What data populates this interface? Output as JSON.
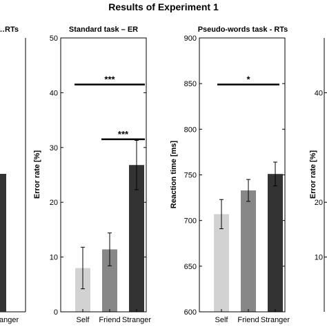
{
  "figure": {
    "title": "Results of Experiment 1"
  },
  "chart_data": [
    {
      "type": "bar",
      "title": "…RTs",
      "visible": "right edge cropped",
      "categories": [
        "…stranger"
      ],
      "values": [
        null
      ],
      "tick_label_text": "anger",
      "partial_bar_visible_top_in_panel2_units": 25.3
    },
    {
      "type": "bar",
      "title": "Standard task – ER",
      "xlabel": "",
      "ylabel": "Error rate [%]",
      "ylim": [
        0,
        50
      ],
      "yticks": [
        0,
        10,
        20,
        30,
        40,
        50
      ],
      "categories": [
        "Self",
        "Friend",
        "Stranger"
      ],
      "values": [
        8.0,
        11.4,
        26.8
      ],
      "error": [
        3.8,
        3.0,
        4.5
      ],
      "colors": [
        "#d2d2d2",
        "#878787",
        "#333333"
      ],
      "significance": [
        {
          "from": 0,
          "to": 2,
          "y": 41.5,
          "label": "***"
        },
        {
          "from": 1,
          "to": 2,
          "y": 31.5,
          "label": "***"
        }
      ]
    },
    {
      "type": "bar",
      "title": "Pseudo-words task - RTs",
      "xlabel": "",
      "ylabel": "Reaction time [ms]",
      "ylim": [
        600,
        900
      ],
      "yticks": [
        600,
        650,
        700,
        750,
        800,
        850,
        900
      ],
      "categories": [
        "Self",
        "Friend",
        "Stranger"
      ],
      "values": [
        707,
        733,
        751
      ],
      "error": [
        16,
        12,
        13
      ],
      "colors": [
        "#d2d2d2",
        "#878787",
        "#333333"
      ],
      "significance": [
        {
          "from": 0,
          "to": 2,
          "y": 849,
          "label": "*"
        }
      ]
    },
    {
      "type": "bar",
      "visible": "left edge only, cropped",
      "ylabel": "Error rate [%]",
      "ylim": [
        0,
        50
      ],
      "yticks_visible": [
        "10",
        "20",
        "40"
      ]
    }
  ]
}
